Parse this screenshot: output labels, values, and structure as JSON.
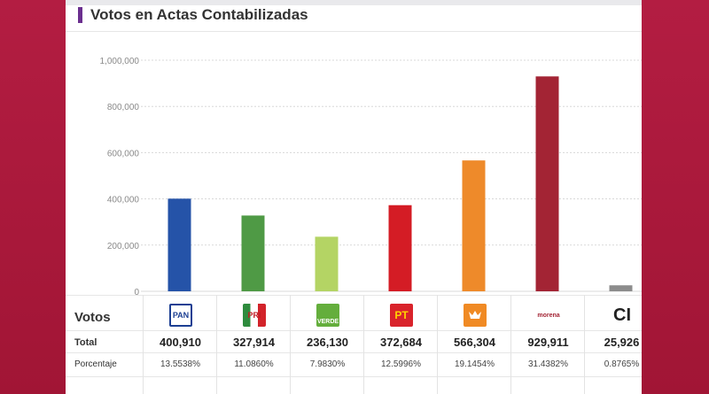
{
  "header": {
    "title": "Votos en Actas Contabilizadas"
  },
  "colors": {
    "accent": "#6b2f8f",
    "background": "#a8183a"
  },
  "chart_data": {
    "type": "bar",
    "categories": [
      "PAN",
      "PRI",
      "VERDE",
      "PT",
      "MC",
      "morena",
      "CI"
    ],
    "values": [
      400910,
      327914,
      236130,
      372684,
      566304,
      929911,
      25926
    ],
    "colors": [
      "#2553a8",
      "#4f9a45",
      "#b4d464",
      "#d41c25",
      "#ee8a2a",
      "#a32434",
      "#8c8c8c"
    ],
    "title": "Votos en Actas Contabilizadas",
    "xlabel": "",
    "ylabel": "",
    "ylim": [
      0,
      1000000
    ],
    "yticks": [
      "0",
      "200,000",
      "400,000",
      "600,000",
      "800,000",
      "1,000,000"
    ],
    "grid": true
  },
  "table": {
    "row_votos": "Votos",
    "row_total": "Total",
    "row_pct": "Porcentaje",
    "parties": [
      {
        "logo": "PAN",
        "icon": "pan-logo-icon",
        "total": "400,910",
        "pct": "13.5538%"
      },
      {
        "logo": "PRI",
        "icon": "pri-logo-icon",
        "total": "327,914",
        "pct": "11.0860%"
      },
      {
        "logo": "VERDE",
        "icon": "verde-logo-icon",
        "total": "236,130",
        "pct": "7.9830%"
      },
      {
        "logo": "PT",
        "icon": "pt-logo-icon",
        "total": "372,684",
        "pct": "12.5996%"
      },
      {
        "logo": "",
        "icon": "mc-logo-icon",
        "total": "566,304",
        "pct": "19.1454%"
      },
      {
        "logo": "morena",
        "icon": "morena-logo-icon",
        "total": "929,911",
        "pct": "31.4382%"
      },
      {
        "logo": "CI",
        "icon": "ci-logo-icon",
        "total": "25,926",
        "pct": "0.8765%"
      }
    ]
  }
}
